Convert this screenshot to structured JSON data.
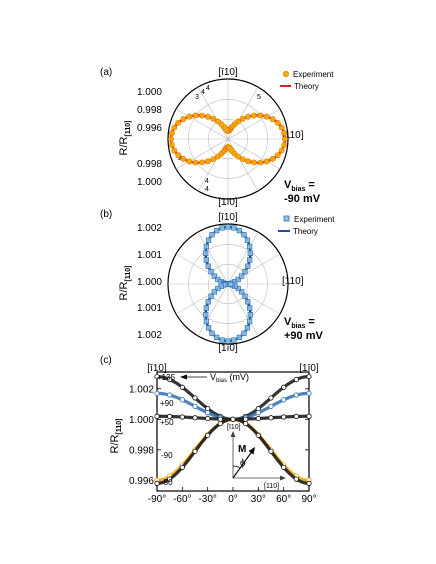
{
  "panels": [
    {
      "id": "a",
      "panel_label": "(a)",
      "ylabel_main": "R/R",
      "ylabel_sub": "[110]",
      "ticks": [
        "1.000",
        "0.998",
        "0.996",
        "0.998",
        "1.000"
      ],
      "dir_top": "[ī10]",
      "dir_right": "[110]",
      "dir_bottom": "[1ī0]",
      "ring_numbers_upper": [
        "3",
        "4",
        "4",
        "5"
      ],
      "ring_numbers_lower": [
        "2",
        "4",
        "4"
      ],
      "legend": [
        {
          "label": "Experiment",
          "marker": "circle",
          "color": "#f5b400",
          "edge": "#e07800"
        },
        {
          "label": "Theory",
          "marker": "line",
          "color": "#e01b1b"
        }
      ],
      "vbias_label": "V",
      "vbias_sub": "bias",
      "vbias_eq": " =",
      "vbias_value": "-90 mV"
    },
    {
      "id": "b",
      "panel_label": "(b)",
      "ylabel_main": "R/R",
      "ylabel_sub": "[110]",
      "ticks": [
        "1.002",
        "1.001",
        "1.000",
        "1.001",
        "1.002"
      ],
      "dir_top": "[ī10]",
      "dir_right": "[110]",
      "dir_bottom": "[1ī0]",
      "legend": [
        {
          "label": "Experiment",
          "marker": "square",
          "color": "#8fc3e8",
          "edge": "#2f6fb0"
        },
        {
          "label": "Theory",
          "marker": "line",
          "color": "#1f4e9c"
        }
      ],
      "vbias_label": "V",
      "vbias_sub": "bias",
      "vbias_eq": " =",
      "vbias_value": "+90 mV"
    },
    {
      "id": "c",
      "panel_label": "(c)",
      "ylabel_main": "R/R",
      "ylabel_sub": "[110]",
      "dir_left": "[ī10]",
      "dir_right": "[1ī0]",
      "curve_labels": [
        "+135",
        "+90",
        "+50",
        "-90",
        "-50"
      ],
      "vbias_label": "V",
      "vbias_sub": "bias",
      "vbias_unit": " (mV)",
      "inset": {
        "axis_up": "[ī10]",
        "axis_right": "[110]",
        "vector_label": "M",
        "angle_label": "ϕ"
      }
    }
  ],
  "chart_data": [
    {
      "type": "polar",
      "panel": "(a)",
      "angle_unit": "deg",
      "radial_ticks": [
        1.0,
        0.998,
        0.996
      ],
      "series": [
        {
          "name": "Experiment",
          "model": "0.996 + 0.004*cos^2(theta)",
          "center": 0.996,
          "amplitude": 0.004
        },
        {
          "name": "Theory",
          "model": "0.996 + 0.004*cos^2(theta)",
          "center": 0.996,
          "amplitude": 0.004
        }
      ]
    },
    {
      "type": "polar",
      "panel": "(b)",
      "angle_unit": "deg",
      "radial_ticks": [
        1.002,
        1.001,
        1.0
      ],
      "series": [
        {
          "name": "Experiment",
          "model": "1.000 + 0.002*sin^2(theta)",
          "center": 1.0,
          "amplitude": 0.002
        },
        {
          "name": "Theory",
          "model": "1.000 + 0.002*sin^2(theta)",
          "center": 1.0,
          "amplitude": 0.002
        }
      ]
    },
    {
      "type": "line",
      "panel": "(c)",
      "xlabel": "",
      "ylabel": "R/R[110]",
      "x_ticks": [
        "-90°",
        "-60°",
        "-30°",
        "0°",
        "30°",
        "60°",
        "90°"
      ],
      "x_tick_values": [
        -90,
        -60,
        -30,
        0,
        30,
        60,
        90
      ],
      "xlim": [
        -90,
        90
      ],
      "y_ticks": [
        "0.996",
        "0.998",
        "1.000",
        "1.002"
      ],
      "y_tick_values": [
        0.996,
        0.998,
        1.0,
        1.002
      ],
      "ylim": [
        0.9953,
        1.0031
      ],
      "x": [
        -90,
        -75,
        -60,
        -45,
        -30,
        -15,
        0,
        15,
        30,
        45,
        60,
        75,
        90
      ],
      "series": [
        {
          "name": "+135",
          "color": "#111111",
          "values": [
            1.0028,
            1.00261,
            1.0021,
            1.0014,
            1.0007,
            1.00019,
            1.0,
            1.00019,
            1.0007,
            1.0014,
            1.0021,
            1.00261,
            1.0028
          ]
        },
        {
          "name": "+90",
          "color": "#2f6fb0",
          "values": [
            1.0017,
            1.00159,
            1.00128,
            1.00085,
            1.00043,
            1.00011,
            1.0,
            1.00011,
            1.00043,
            1.00085,
            1.00128,
            1.00159,
            1.0017
          ]
        },
        {
          "name": "+50",
          "color": "#111111",
          "values": [
            1.0002,
            1.00019,
            1.00015,
            1.0001,
            1.00005,
            1.00001,
            1.0,
            1.00001,
            1.00005,
            1.0001,
            1.00015,
            1.00019,
            1.0002
          ]
        },
        {
          "name": "-90",
          "color": "#f5a300",
          "values": [
            0.996,
            0.99627,
            0.997,
            0.998,
            0.999,
            0.99973,
            1.0,
            0.99973,
            0.999,
            0.998,
            0.997,
            0.99627,
            0.996
          ]
        },
        {
          "name": "-50",
          "color": "#111111",
          "values": [
            0.9958,
            0.99608,
            0.99685,
            0.9979,
            0.99895,
            0.99972,
            1.0,
            0.99972,
            0.99895,
            0.9979,
            0.99685,
            0.99608,
            0.9958
          ]
        }
      ]
    }
  ]
}
